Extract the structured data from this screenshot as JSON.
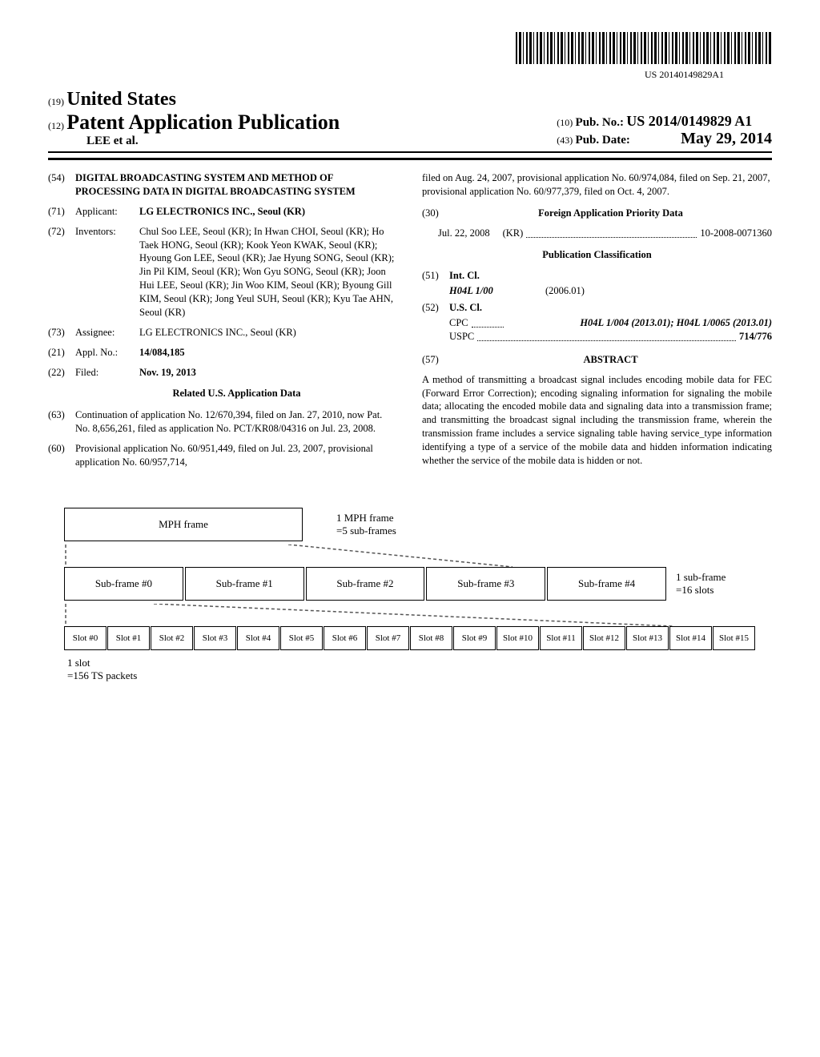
{
  "barcode_number": "US 20140149829A1",
  "header": {
    "inid19": "(19)",
    "country": "United States",
    "inid12": "(12)",
    "pub_type": "Patent Application Publication",
    "author_line": "LEE et al.",
    "inid10": "(10)",
    "pub_no_label": "Pub. No.:",
    "pub_no": "US 2014/0149829 A1",
    "inid43": "(43)",
    "pub_date_label": "Pub. Date:",
    "pub_date": "May 29, 2014"
  },
  "left": {
    "f54_num": "(54)",
    "f54_title": "DIGITAL BROADCASTING SYSTEM AND METHOD OF PROCESSING DATA IN DIGITAL BROADCASTING SYSTEM",
    "f71_num": "(71)",
    "f71_label": "Applicant:",
    "f71_val": "LG ELECTRONICS INC., Seoul (KR)",
    "f72_num": "(72)",
    "f72_label": "Inventors:",
    "f72_val": "Chul Soo LEE, Seoul (KR); In Hwan CHOI, Seoul (KR); Ho Taek HONG, Seoul (KR); Kook Yeon KWAK, Seoul (KR); Hyoung Gon LEE, Seoul (KR); Jae Hyung SONG, Seoul (KR); Jin Pil KIM, Seoul (KR); Won Gyu SONG, Seoul (KR); Joon Hui LEE, Seoul (KR); Jin Woo KIM, Seoul (KR); Byoung Gill KIM, Seoul (KR); Jong Yeul SUH, Seoul (KR); Kyu Tae AHN, Seoul (KR)",
    "f73_num": "(73)",
    "f73_label": "Assignee:",
    "f73_val": "LG ELECTRONICS INC., Seoul (KR)",
    "f21_num": "(21)",
    "f21_label": "Appl. No.:",
    "f21_val": "14/084,185",
    "f22_num": "(22)",
    "f22_label": "Filed:",
    "f22_val": "Nov. 19, 2013",
    "related_title": "Related U.S. Application Data",
    "f63_num": "(63)",
    "f63_val": "Continuation of application No. 12/670,394, filed on Jan. 27, 2010, now Pat. No. 8,656,261, filed as application No. PCT/KR08/04316 on Jul. 23, 2008.",
    "f60_num": "(60)",
    "f60_val": "Provisional application No. 60/951,449, filed on Jul. 23, 2007, provisional application No. 60/957,714,"
  },
  "right": {
    "continuation": "filed on Aug. 24, 2007, provisional application No. 60/974,084, filed on Sep. 21, 2007, provisional application No. 60/977,379, filed on Oct. 4, 2007.",
    "f30_num": "(30)",
    "f30_title": "Foreign Application Priority Data",
    "f30_date": "Jul. 22, 2008",
    "f30_country": "(KR)",
    "f30_appno": "10-2008-0071360",
    "pub_class_title": "Publication Classification",
    "f51_num": "(51)",
    "f51_label": "Int. Cl.",
    "f51_code": "H04L 1/00",
    "f51_year": "(2006.01)",
    "f52_num": "(52)",
    "f52_label": "U.S. Cl.",
    "cpc_label": "CPC",
    "cpc_val": "H04L 1/004 (2013.01); H04L 1/0065 (2013.01)",
    "uspc_label": "USPC",
    "uspc_val": "714/776",
    "f57_num": "(57)",
    "f57_label": "ABSTRACT",
    "abstract": "A method of transmitting a broadcast signal includes encoding mobile data for FEC (Forward Error Correction); encoding signaling information for signaling the mobile data; allocating the encoded mobile data and signaling data into a transmission frame; and transmitting the broadcast signal including the transmission frame, wherein the transmission frame includes a service signaling table having service_type information identifying a type of a service of the mobile data and hidden information indicating whether the service of the mobile data is hidden or not."
  },
  "figure": {
    "mph_frame": "MPH frame",
    "mph_note": "1 MPH frame\n=5 sub-frames",
    "subframes": [
      "Sub-frame #0",
      "Sub-frame #1",
      "Sub-frame #2",
      "Sub-frame #3",
      "Sub-frame #4"
    ],
    "subframe_note": "1 sub-frame\n=16 slots",
    "slots": [
      "Slot #0",
      "Slot #1",
      "Slot #2",
      "Slot #3",
      "Slot #4",
      "Slot #5",
      "Slot #6",
      "Slot #7",
      "Slot #8",
      "Slot #9",
      "Slot #10",
      "Slot #11",
      "Slot #12",
      "Slot #13",
      "Slot #14",
      "Slot #15"
    ],
    "slot_note": "1 slot\n=156 TS packets"
  }
}
